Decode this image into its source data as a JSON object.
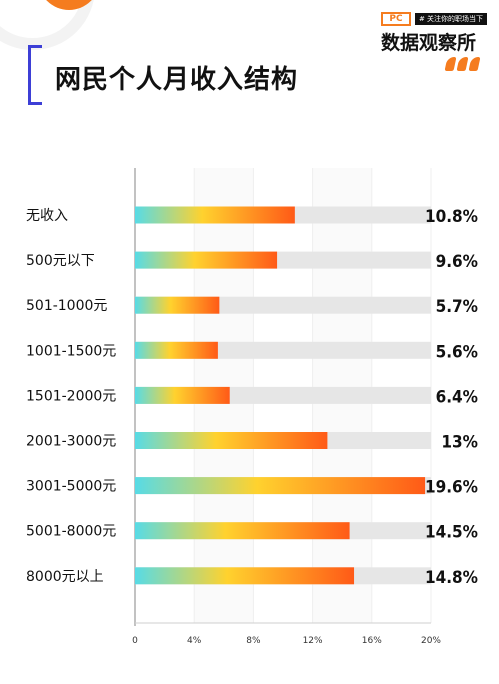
{
  "header": {
    "title": "网民个人月收入结构",
    "logo_mark": "PC",
    "logo_tag": "# 关注你的职场当下",
    "logo_name": "数据观察所"
  },
  "colors": {
    "accent": "#f57c1f",
    "bracket": "#3d3fd6",
    "track": "#e6e6e6",
    "gradient": [
      "#57dbe6",
      "#ffd22e",
      "#ff5a17"
    ]
  },
  "chart_data": {
    "type": "bar",
    "orientation": "horizontal",
    "title": "网民个人月收入结构",
    "categories": [
      "无收入",
      "500元以下",
      "501-1000元",
      "1001-1500元",
      "1501-2000元",
      "2001-3000元",
      "3001-5000元",
      "5001-8000元",
      "8000元以上"
    ],
    "values": [
      10.8,
      9.6,
      5.7,
      5.6,
      6.4,
      13,
      19.6,
      14.5,
      14.8
    ],
    "value_labels": [
      "10.8%",
      "9.6%",
      "5.7%",
      "5.6%",
      "6.4%",
      "13%",
      "19.6%",
      "14.5%",
      "14.8%"
    ],
    "xlim": [
      0,
      20
    ],
    "xticks": [
      0,
      4,
      8,
      12,
      16,
      20
    ],
    "xtick_labels": [
      "0",
      "4%",
      "8%",
      "12%",
      "16%",
      "20%"
    ],
    "track_max": 20,
    "grid": true,
    "xlabel": "",
    "ylabel": ""
  }
}
